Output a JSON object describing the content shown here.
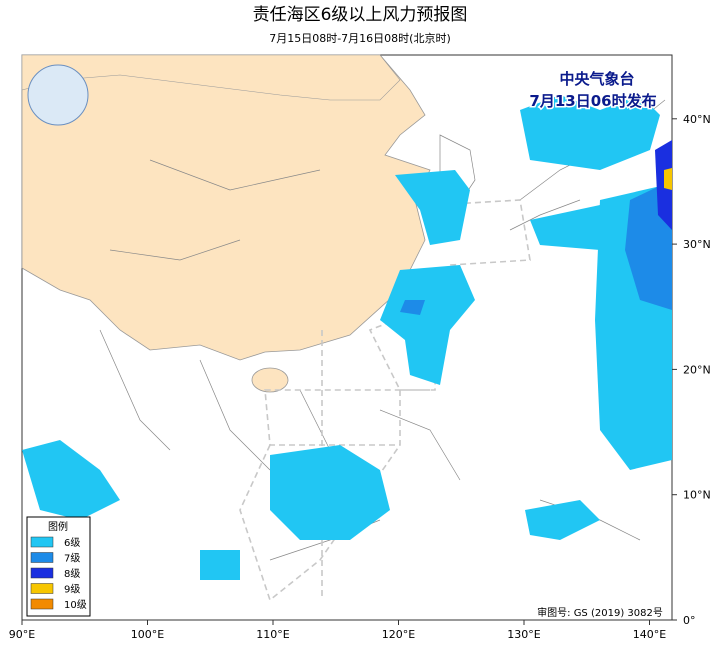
{
  "header": {
    "title": "责任海区6级以上风力预报图",
    "subtitle": "7月15日08时-7月16日08时(北京时)"
  },
  "publisher": {
    "name": "中央气象台",
    "date": "7月13日06时发布"
  },
  "legend": {
    "title": "图例",
    "items": [
      {
        "label": "6级",
        "color": "#21c6f3"
      },
      {
        "label": "7级",
        "color": "#1d8be8"
      },
      {
        "label": "8级",
        "color": "#1a2fe0"
      },
      {
        "label": "9级",
        "color": "#f7c600"
      },
      {
        "label": "10级",
        "color": "#f28a00"
      }
    ]
  },
  "axes": {
    "longitude": [
      "90°E",
      "100°E",
      "110°E",
      "120°E",
      "130°E",
      "140°E"
    ],
    "latitude": [
      "0°",
      "10°N",
      "20°N",
      "30°N",
      "40°N"
    ]
  },
  "footer": {
    "approval": "审图号: GS (2019) 3082号"
  }
}
